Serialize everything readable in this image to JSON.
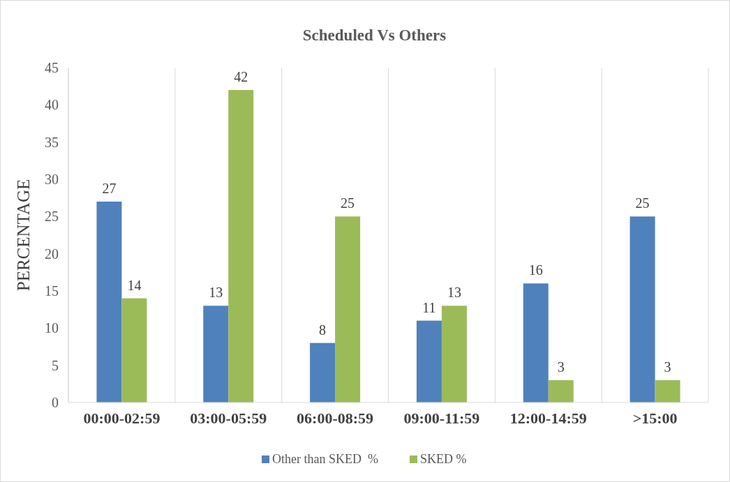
{
  "chart_data": {
    "type": "bar",
    "title": "Scheduled Vs Others",
    "ylabel": "PERCENTAGE",
    "categories": [
      "00:00-02:59",
      "03:00-05:59",
      "06:00-08:59",
      "09:00-11:59",
      "12:00-14:59",
      ">15:00"
    ],
    "series": [
      {
        "name": "Other than SKED  %",
        "color": "#4f81bd",
        "values": [
          27,
          13,
          8,
          11,
          16,
          25
        ]
      },
      {
        "name": "SKED %",
        "color": "#9bbb59",
        "values": [
          14,
          42,
          25,
          13,
          3,
          3
        ]
      }
    ],
    "ylim": [
      0,
      45
    ],
    "yticks": [
      0,
      5,
      10,
      15,
      20,
      25,
      30,
      35,
      40,
      45
    ],
    "grid": "x",
    "legend": "bottom",
    "data_labels": true
  }
}
